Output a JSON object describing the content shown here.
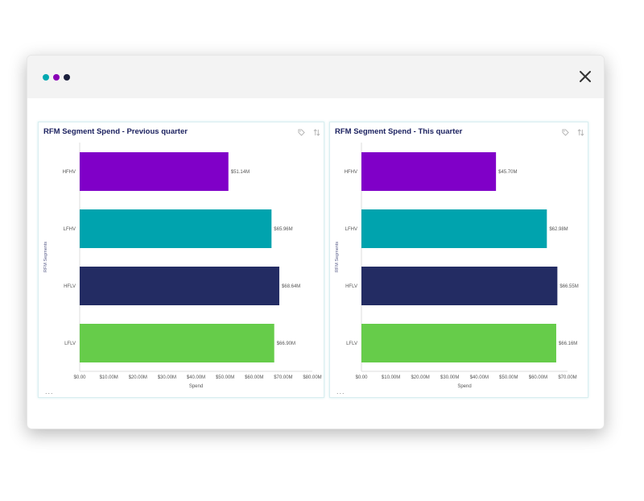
{
  "window": {
    "dot_colors": [
      "#00a8b0",
      "#8800b5",
      "#1b1f3c"
    ]
  },
  "colors": {
    "HFHV": "#8000c8",
    "LFHV": "#00a3ae",
    "HFLV": "#232c63",
    "LFLV": "#66cc4a",
    "title": "#1c2260",
    "axis_text": "#555555"
  },
  "panels": [
    {
      "title": "RFM Segment Spend - Previous quarter",
      "more": "...",
      "chart_data": {
        "type": "bar",
        "orientation": "horizontal",
        "title": "RFM Segment Spend - Previous quarter",
        "xlabel": "Spend",
        "ylabel": "RFM Segments",
        "categories": [
          "HFHV",
          "LFHV",
          "HFLV",
          "LFLV"
        ],
        "values": [
          51.14,
          65.96,
          68.64,
          66.9
        ],
        "value_labels": [
          "$51.14M",
          "$65.96M",
          "$68.64M",
          "$66.90M"
        ],
        "xlim": [
          0,
          80
        ],
        "xticks": [
          "$0.00",
          "$10.00M",
          "$20.00M",
          "$30.00M",
          "$40.00M",
          "$50.00M",
          "$60.00M",
          "$70.00M",
          "$80.00M"
        ]
      }
    },
    {
      "title": "RFM Segment Spend - This quarter",
      "more": "...",
      "chart_data": {
        "type": "bar",
        "orientation": "horizontal",
        "title": "RFM Segment Spend - This quarter",
        "xlabel": "Spend",
        "ylabel": "RFM Segments",
        "categories": [
          "HFHV",
          "LFHV",
          "HFLV",
          "LFLV"
        ],
        "values": [
          45.7,
          62.98,
          66.55,
          66.16
        ],
        "value_labels": [
          "$45.70M",
          "$62.98M",
          "$66.55M",
          "$66.16M"
        ],
        "xlim": [
          0,
          70
        ],
        "xticks": [
          "$0.00",
          "$10.00M",
          "$20.00M",
          "$30.00M",
          "$40.00M",
          "$50.00M",
          "$60.00M",
          "$70.00M"
        ]
      }
    }
  ]
}
